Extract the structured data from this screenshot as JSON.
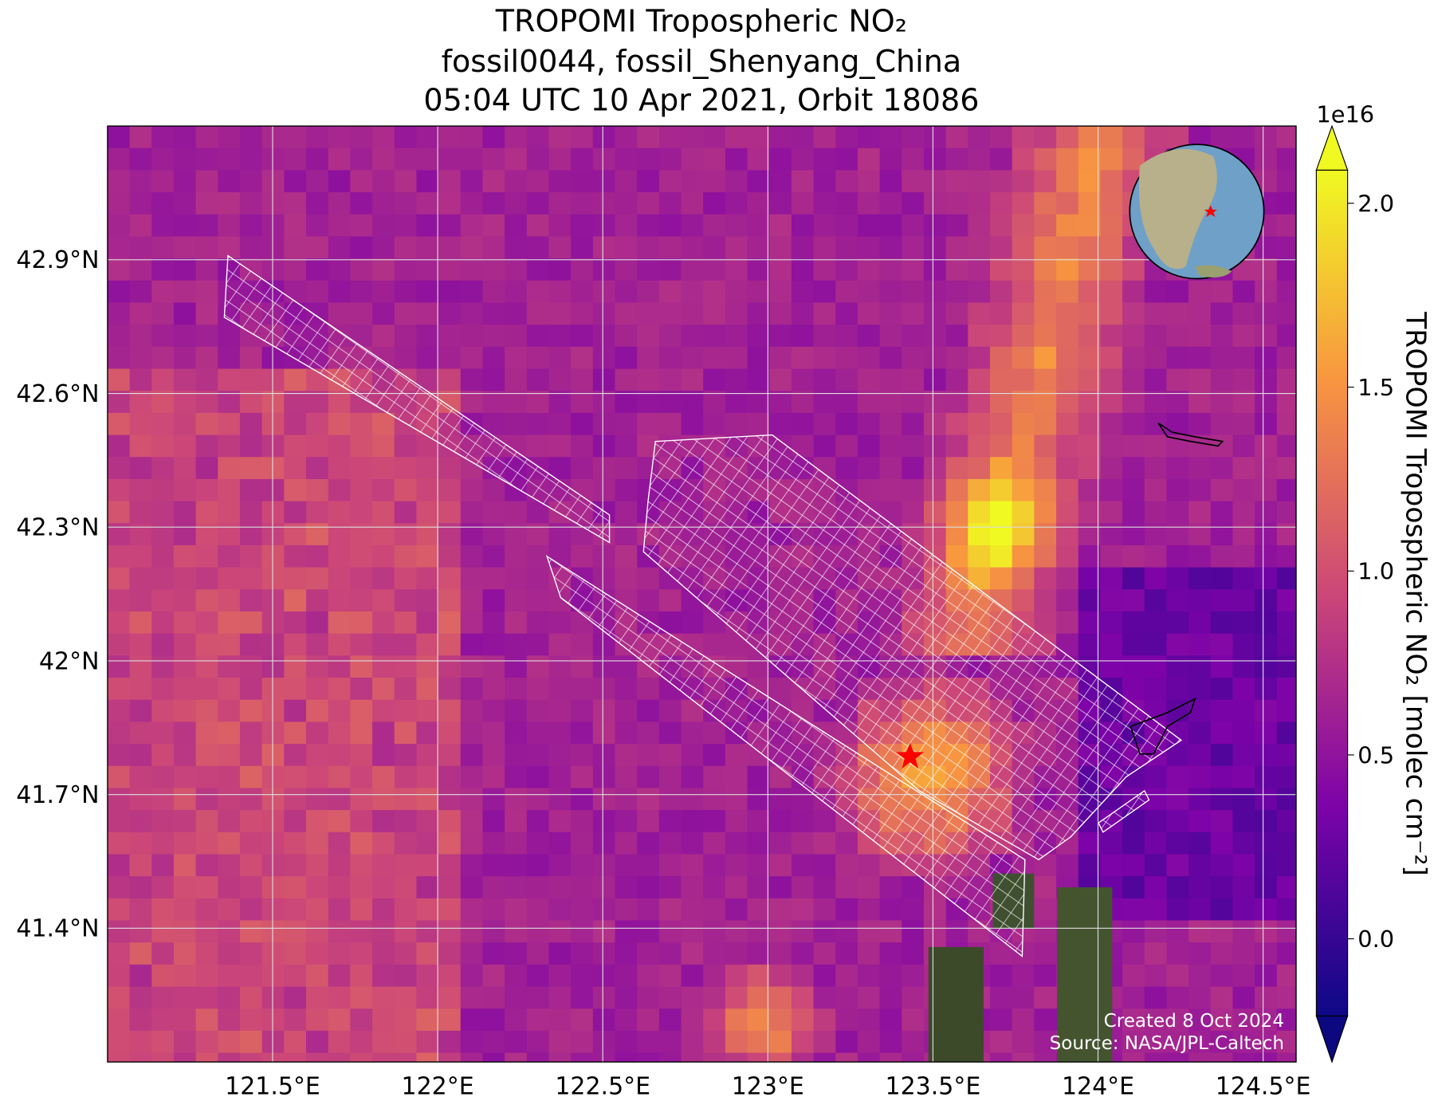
{
  "chart_data": {
    "type": "map",
    "title": [
      "TROPOMI Tropospheric NO₂",
      "fossil0044, fossil_Shenyang_China",
      "05:04 UTC 10 Apr 2021, Orbit 18086"
    ],
    "xlim": [
      121.0,
      124.6
    ],
    "ylim": [
      41.1,
      43.2
    ],
    "xticks": [
      {
        "value": 121.5,
        "label": "121.5°E"
      },
      {
        "value": 122,
        "label": "122°E"
      },
      {
        "value": 122.5,
        "label": "122.5°E"
      },
      {
        "value": 123,
        "label": "123°E"
      },
      {
        "value": 123.5,
        "label": "123.5°E"
      },
      {
        "value": 124,
        "label": "124°E"
      },
      {
        "value": 124.5,
        "label": "124.5°E"
      }
    ],
    "yticks": [
      {
        "value": 42.9,
        "label": "42.9°N"
      },
      {
        "value": 42.6,
        "label": "42.6°N"
      },
      {
        "value": 42.3,
        "label": "42.3°N"
      },
      {
        "value": 42,
        "label": "42°N"
      },
      {
        "value": 41.7,
        "label": "41.7°N"
      },
      {
        "value": 41.4,
        "label": "41.4°N"
      }
    ],
    "grid": true,
    "colorbar": {
      "label": "TROPOMI Tropospheric NO₂ [molec cm⁻²]",
      "exponent": "1e16",
      "lim": [
        -0.21,
        2.09
      ],
      "ticks": [
        {
          "value": 0,
          "label": "0.0"
        },
        0.5,
        {
          "value": 1,
          "label": "1.0"
        },
        1.5,
        {
          "value": 2,
          "label": "2.0"
        }
      ]
    },
    "credits": [
      "Created 8 Oct 2024",
      "Source: NASA/JPL-Caltech"
    ]
  }
}
